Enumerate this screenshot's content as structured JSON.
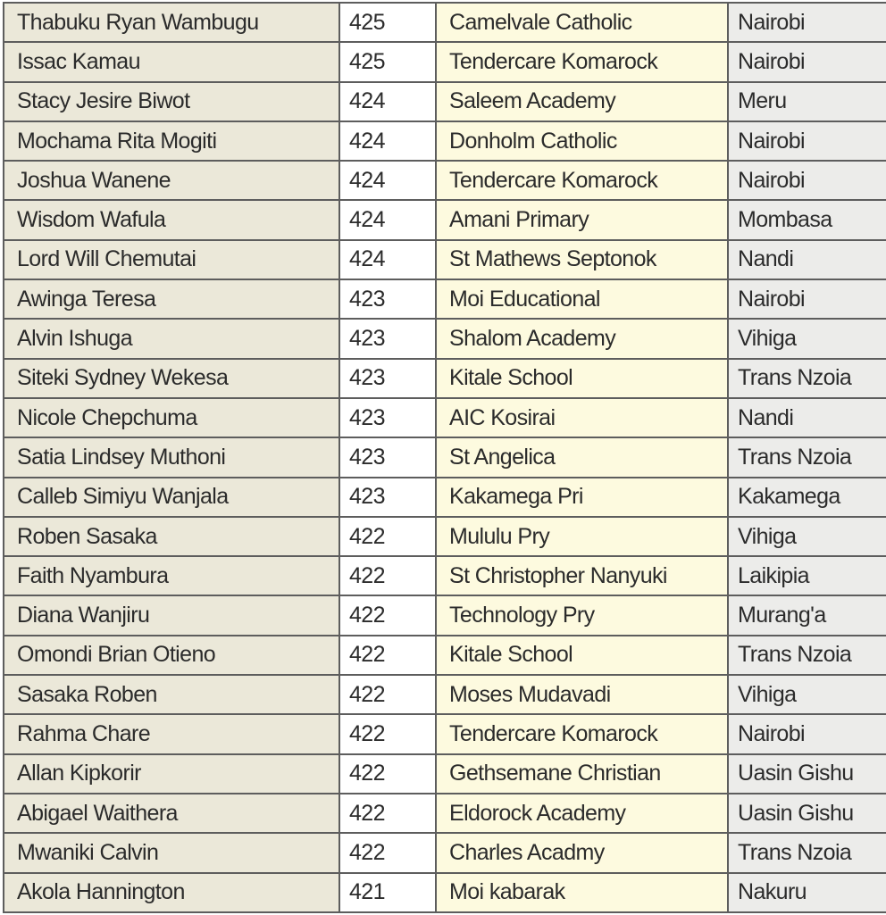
{
  "rows": [
    {
      "name": "Thabuku Ryan Wambugu",
      "score": "425",
      "school": "Camelvale Catholic",
      "county": "Nairobi"
    },
    {
      "name": "Issac Kamau",
      "score": "425",
      "school": "Tendercare Komarock",
      "county": "Nairobi"
    },
    {
      "name": "Stacy Jesire Biwot",
      "score": "424",
      "school": "Saleem Academy",
      "county": "Meru"
    },
    {
      "name": "Mochama Rita Mogiti",
      "score": "424",
      "school": "Donholm Catholic",
      "county": "Nairobi"
    },
    {
      "name": "Joshua Wanene",
      "score": "424",
      "school": "Tendercare Komarock",
      "county": "Nairobi"
    },
    {
      "name": "Wisdom Wafula",
      "score": "424",
      "school": "Amani Primary",
      "county": "Mombasa"
    },
    {
      "name": "Lord Will Chemutai",
      "score": "424",
      "school": "St Mathews Septonok",
      "county": "Nandi"
    },
    {
      "name": "Awinga Teresa",
      "score": "423",
      "school": "Moi Educational",
      "county": "Nairobi"
    },
    {
      "name": "Alvin Ishuga",
      "score": "423",
      "school": "Shalom Academy",
      "county": "Vihiga"
    },
    {
      "name": "Siteki Sydney Wekesa",
      "score": "423",
      "school": "Kitale School",
      "county": "Trans Nzoia"
    },
    {
      "name": "Nicole Chepchuma",
      "score": "423",
      "school": "AIC Kosirai",
      "county": "Nandi"
    },
    {
      "name": "Satia Lindsey Muthoni",
      "score": "423",
      "school": "St Angelica",
      "county": "Trans Nzoia"
    },
    {
      "name": "Calleb Simiyu Wanjala",
      "score": "423",
      "school": "Kakamega Pri",
      "county": "Kakamega"
    },
    {
      "name": "Roben Sasaka",
      "score": "422",
      "school": "Mululu Pry",
      "county": "Vihiga"
    },
    {
      "name": "Faith Nyambura",
      "score": "422",
      "school": "St Christopher Nanyuki",
      "county": "Laikipia"
    },
    {
      "name": "Diana Wanjiru",
      "score": "422",
      "school": "Technology Pry",
      "county": "Murang'a"
    },
    {
      "name": "Omondi Brian Otieno",
      "score": "422",
      "school": "Kitale School",
      "county": "Trans Nzoia"
    },
    {
      "name": "Sasaka Roben",
      "score": "422",
      "school": "Moses Mudavadi",
      "county": "Vihiga"
    },
    {
      "name": "Rahma Chare",
      "score": "422",
      "school": "Tendercare Komarock",
      "county": "Nairobi"
    },
    {
      "name": "Allan Kipkorir",
      "score": "422",
      "school": "Gethsemane Christian",
      "county": "Uasin Gishu"
    },
    {
      "name": "Abigael Waithera",
      "score": "422",
      "school": "Eldorock Academy",
      "county": "Uasin Gishu"
    },
    {
      "name": "Mwaniki Calvin",
      "score": "422",
      "school": "Charles Acadmy",
      "county": "Trans Nzoia"
    },
    {
      "name": "Akola Hannington",
      "score": "421",
      "school": "Moi kabarak",
      "county": "Nakuru"
    }
  ]
}
